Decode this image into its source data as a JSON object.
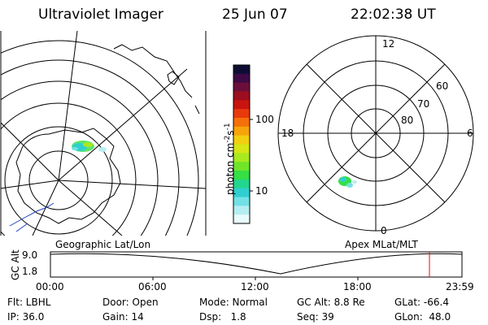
{
  "header": {
    "instrument": "Ultraviolet Imager",
    "date": "25 Jun 07",
    "time": "22:02:38 UT"
  },
  "left_map": {
    "projection_label": "Geographic Lat/Lon"
  },
  "right_map": {
    "projection_label": "Apex MLat/MLT",
    "mlt_labels": {
      "top": "12",
      "left": "18",
      "right": "6",
      "bottom": "0"
    },
    "lat_labels": [
      "60",
      "70",
      "80"
    ]
  },
  "colorbar": {
    "unit_label": "photon cm",
    "unit_exp1": "-2",
    "unit_mid": "s",
    "unit_exp2": "-1",
    "tick_100": "100",
    "tick_10": "10",
    "colors_top_to_bottom": [
      "#0d0d33",
      "#3d0a45",
      "#6b0f3a",
      "#9c0d1f",
      "#c8140f",
      "#e83a0c",
      "#f5700a",
      "#f7a40b",
      "#f2cf10",
      "#d7e615",
      "#a8ea1f",
      "#6fe52a",
      "#35df44",
      "#22d68e",
      "#30cfcf",
      "#73e0e6",
      "#b5eef2",
      "#e9fbfd"
    ]
  },
  "timeline": {
    "y_axis_label": "GC Alt",
    "y_top": "9.0",
    "y_bottom": "1.8",
    "x_ticks": [
      "00:00",
      "06:00",
      "12:00",
      "18:00",
      "23:59"
    ],
    "marker_color": "#ff0000"
  },
  "info": {
    "flt": "Flt: LBHL",
    "door": "Door: Open",
    "mode": "Mode: Normal",
    "gc_alt": "GC Alt: 8.8 Re",
    "glat": "GLat: -66.4",
    "ip": "IP: 36.0",
    "gain": "Gain: 14",
    "dsp": "Dsp:   1.8",
    "seq": "Seq: 39",
    "glon": "GLon:  48.0"
  }
}
